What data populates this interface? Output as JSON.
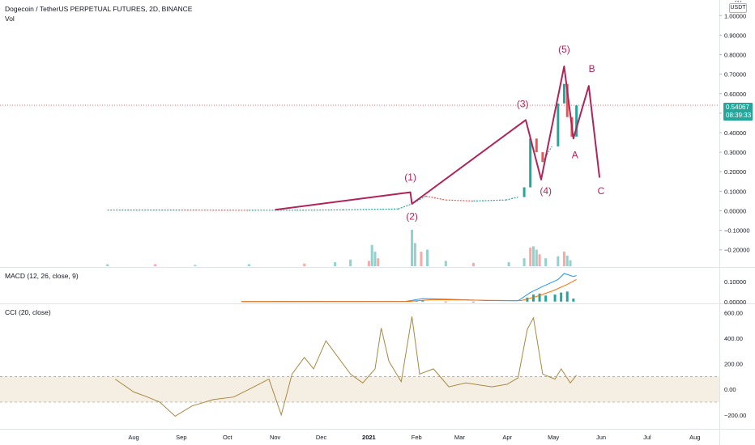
{
  "header": {
    "symbol_title": "Dogecoin / TetherUS PERPETUAL FUTURES, 2D, BINANCE",
    "vol_label": "Vol",
    "currency_button": "USDT",
    "macd_label": "MACD (12, 26, close, 9)",
    "cci_label": "CCI (20, close)"
  },
  "price_tag": {
    "price": "0.54067",
    "countdown": "08:39:33"
  },
  "colors": {
    "up": "#26a69a",
    "down": "#ef5350",
    "wave": "#b0245a",
    "macd_line": "#2196f3",
    "signal_line": "#ff6d00",
    "cci_line": "#a88840",
    "cci_band": "#f5efe3",
    "price_line": "#ef5350"
  },
  "chart_data": [
    {
      "type": "candlestick",
      "title": "Dogecoin / TetherUS PERPETUAL FUTURES, 2D, BINANCE",
      "x_ticks": [
        "Aug",
        "Sep",
        "Oct",
        "Nov",
        "Dec",
        "2021",
        "Feb",
        "Mar",
        "Apr",
        "May",
        "Jun",
        "Jul",
        "Aug"
      ],
      "y_ticks": [
        "1.00000",
        "0.90000",
        "0.80000",
        "0.70000",
        "0.60000",
        "0.50000",
        "0.40000",
        "0.30000",
        "0.20000",
        "0.10000",
        "0.00000",
        "−0.10000",
        "−0.20000"
      ],
      "ylim": [
        -0.28,
        1.08
      ],
      "last_price": 0.54067,
      "price_series": [
        {
          "date": "2020-07-15",
          "close": 0.0033
        },
        {
          "date": "2020-09-01",
          "close": 0.0036
        },
        {
          "date": "2020-10-15",
          "close": 0.0026
        },
        {
          "date": "2020-11-15",
          "close": 0.0028
        },
        {
          "date": "2020-12-15",
          "close": 0.0045
        },
        {
          "date": "2021-01-20",
          "close": 0.009
        },
        {
          "date": "2021-01-29",
          "close": 0.035
        },
        {
          "date": "2021-02-07",
          "close": 0.075
        },
        {
          "date": "2021-02-20",
          "close": 0.055
        },
        {
          "date": "2021-03-10",
          "close": 0.05
        },
        {
          "date": "2021-03-31",
          "close": 0.055
        },
        {
          "date": "2021-04-08",
          "close": 0.07
        },
        {
          "date": "2021-04-12",
          "close": 0.12
        },
        {
          "date": "2021-04-16",
          "close": 0.37
        },
        {
          "date": "2021-04-20",
          "close": 0.3
        },
        {
          "date": "2021-04-24",
          "close": 0.25
        },
        {
          "date": "2021-04-30",
          "close": 0.33
        },
        {
          "date": "2021-05-04",
          "close": 0.55
        },
        {
          "date": "2021-05-08",
          "close": 0.65
        },
        {
          "date": "2021-05-10",
          "close": 0.48
        },
        {
          "date": "2021-05-13",
          "close": 0.38
        },
        {
          "date": "2021-05-16",
          "close": 0.54
        }
      ],
      "volume": [
        {
          "date": "2020-07-15",
          "value": 3
        },
        {
          "date": "2020-08-15",
          "value": 3
        },
        {
          "date": "2020-09-10",
          "value": 2
        },
        {
          "date": "2020-10-15",
          "value": 3
        },
        {
          "date": "2020-11-20",
          "value": 4
        },
        {
          "date": "2020-12-10",
          "value": 6
        },
        {
          "date": "2020-12-20",
          "value": 10
        },
        {
          "date": "2021-01-01",
          "value": 8
        },
        {
          "date": "2021-01-03",
          "value": 32
        },
        {
          "date": "2021-01-05",
          "value": 22
        },
        {
          "date": "2021-01-07",
          "value": 12
        },
        {
          "date": "2021-01-29",
          "value": 55
        },
        {
          "date": "2021-01-31",
          "value": 35
        },
        {
          "date": "2021-02-04",
          "value": 22
        },
        {
          "date": "2021-02-08",
          "value": 25
        },
        {
          "date": "2021-02-20",
          "value": 8
        },
        {
          "date": "2021-03-10",
          "value": 5
        },
        {
          "date": "2021-04-02",
          "value": 6
        },
        {
          "date": "2021-04-12",
          "value": 12
        },
        {
          "date": "2021-04-16",
          "value": 28
        },
        {
          "date": "2021-04-18",
          "value": 30
        },
        {
          "date": "2021-04-20",
          "value": 25
        },
        {
          "date": "2021-04-22",
          "value": 18
        },
        {
          "date": "2021-04-26",
          "value": 12
        },
        {
          "date": "2021-05-04",
          "value": 15
        },
        {
          "date": "2021-05-08",
          "value": 22
        },
        {
          "date": "2021-05-10",
          "value": 16
        },
        {
          "date": "2021-05-12",
          "value": 9
        }
      ],
      "wave_path": [
        {
          "date": "2020-11-01",
          "price": 0.005
        },
        {
          "date": "2021-01-28",
          "price": 0.095
        },
        {
          "date": "2021-01-29",
          "price": 0.035
        },
        {
          "date": "2021-04-13",
          "price": 0.465
        },
        {
          "date": "2021-04-23",
          "price": 0.16
        },
        {
          "date": "2021-05-08",
          "price": 0.74
        },
        {
          "date": "2021-05-14",
          "price": 0.37
        },
        {
          "date": "2021-05-24",
          "price": 0.64
        },
        {
          "date": "2021-05-31",
          "price": 0.17
        }
      ],
      "wave_labels": [
        {
          "text": "(1)",
          "date": "2021-01-28",
          "price": 0.155
        },
        {
          "text": "(2)",
          "date": "2021-01-29",
          "price": -0.045
        },
        {
          "text": "(3)",
          "date": "2021-04-11",
          "price": 0.53
        },
        {
          "text": "(4)",
          "date": "2021-04-26",
          "price": 0.085
        },
        {
          "text": "(5)",
          "date": "2021-05-08",
          "price": 0.81
        },
        {
          "text": "A",
          "date": "2021-05-15",
          "price": 0.27
        },
        {
          "text": "B",
          "date": "2021-05-26",
          "price": 0.71
        },
        {
          "text": "C",
          "date": "2021-06-01",
          "price": 0.085
        }
      ]
    },
    {
      "type": "line",
      "title": "MACD (12, 26, close, 9)",
      "y_ticks": [
        "0.10000",
        "0.00000"
      ],
      "ylim": [
        -0.005,
        0.16
      ],
      "series": [
        {
          "values": [
            {
              "date": "2020-10-10",
              "value": 0.0
            },
            {
              "date": "2021-01-25",
              "value": 0.001
            },
            {
              "date": "2021-02-05",
              "value": 0.015
            },
            {
              "date": "2021-02-20",
              "value": 0.012
            },
            {
              "date": "2021-03-20",
              "value": 0.005
            },
            {
              "date": "2021-04-08",
              "value": 0.004
            },
            {
              "date": "2021-04-16",
              "value": 0.045
            },
            {
              "date": "2021-04-24",
              "value": 0.075
            },
            {
              "date": "2021-05-04",
              "value": 0.11
            },
            {
              "date": "2021-05-08",
              "value": 0.14
            },
            {
              "date": "2021-05-14",
              "value": 0.125
            },
            {
              "date": "2021-05-16",
              "value": 0.13
            }
          ]
        },
        {
          "values": [
            {
              "date": "2020-10-10",
              "value": 0.0
            },
            {
              "date": "2021-01-25",
              "value": 0.0
            },
            {
              "date": "2021-02-12",
              "value": 0.01
            },
            {
              "date": "2021-03-20",
              "value": 0.006
            },
            {
              "date": "2021-04-10",
              "value": 0.005
            },
            {
              "date": "2021-04-20",
              "value": 0.025
            },
            {
              "date": "2021-05-01",
              "value": 0.055
            },
            {
              "date": "2021-05-10",
              "value": 0.085
            },
            {
              "date": "2021-05-16",
              "value": 0.11
            }
          ]
        }
      ],
      "histogram": [
        {
          "date": "2021-02-01",
          "value": 0.003
        },
        {
          "date": "2021-02-05",
          "value": 0.005
        },
        {
          "date": "2021-02-20",
          "value": -0.002
        },
        {
          "date": "2021-03-10",
          "value": -0.001
        },
        {
          "date": "2021-04-14",
          "value": 0.02
        },
        {
          "date": "2021-04-18",
          "value": 0.035
        },
        {
          "date": "2021-04-22",
          "value": 0.04
        },
        {
          "date": "2021-04-26",
          "value": 0.03
        },
        {
          "date": "2021-05-02",
          "value": 0.035
        },
        {
          "date": "2021-05-06",
          "value": 0.045
        },
        {
          "date": "2021-05-10",
          "value": 0.05
        },
        {
          "date": "2021-05-14",
          "value": 0.015
        }
      ]
    },
    {
      "type": "line",
      "title": "CCI (20, close)",
      "y_ticks": [
        "600.00",
        "400.00",
        "200.00",
        "0.00",
        "−200.00"
      ],
      "ylim": [
        -290,
        660
      ],
      "band": [
        -100,
        100
      ],
      "series": [
        {
          "values": [
            {
              "date": "2020-07-20",
              "value": 80
            },
            {
              "date": "2020-08-01",
              "value": -20
            },
            {
              "date": "2020-08-10",
              "value": -60
            },
            {
              "date": "2020-08-18",
              "value": -100
            },
            {
              "date": "2020-08-28",
              "value": -210
            },
            {
              "date": "2020-09-08",
              "value": -130
            },
            {
              "date": "2020-09-22",
              "value": -80
            },
            {
              "date": "2020-10-05",
              "value": -60
            },
            {
              "date": "2020-10-15",
              "value": 0
            },
            {
              "date": "2020-10-28",
              "value": 80
            },
            {
              "date": "2020-11-05",
              "value": -200
            },
            {
              "date": "2020-11-12",
              "value": 120
            },
            {
              "date": "2020-11-20",
              "value": 250
            },
            {
              "date": "2020-11-26",
              "value": 160
            },
            {
              "date": "2020-12-04",
              "value": 380
            },
            {
              "date": "2020-12-12",
              "value": 250
            },
            {
              "date": "2020-12-20",
              "value": 120
            },
            {
              "date": "2020-12-28",
              "value": 50
            },
            {
              "date": "2021-01-05",
              "value": 160
            },
            {
              "date": "2021-01-09",
              "value": 480
            },
            {
              "date": "2021-01-14",
              "value": 220
            },
            {
              "date": "2021-01-22",
              "value": 60
            },
            {
              "date": "2021-01-29",
              "value": 570
            },
            {
              "date": "2021-02-03",
              "value": 120
            },
            {
              "date": "2021-02-12",
              "value": 160
            },
            {
              "date": "2021-02-22",
              "value": 20
            },
            {
              "date": "2021-03-05",
              "value": 50
            },
            {
              "date": "2021-03-22",
              "value": 20
            },
            {
              "date": "2021-04-01",
              "value": 40
            },
            {
              "date": "2021-04-08",
              "value": 90
            },
            {
              "date": "2021-04-14",
              "value": 470
            },
            {
              "date": "2021-04-18",
              "value": 560
            },
            {
              "date": "2021-04-24",
              "value": 120
            },
            {
              "date": "2021-05-02",
              "value": 80
            },
            {
              "date": "2021-05-06",
              "value": 160
            },
            {
              "date": "2021-05-12",
              "value": 50
            },
            {
              "date": "2021-05-16",
              "value": 110
            }
          ]
        }
      ]
    }
  ]
}
